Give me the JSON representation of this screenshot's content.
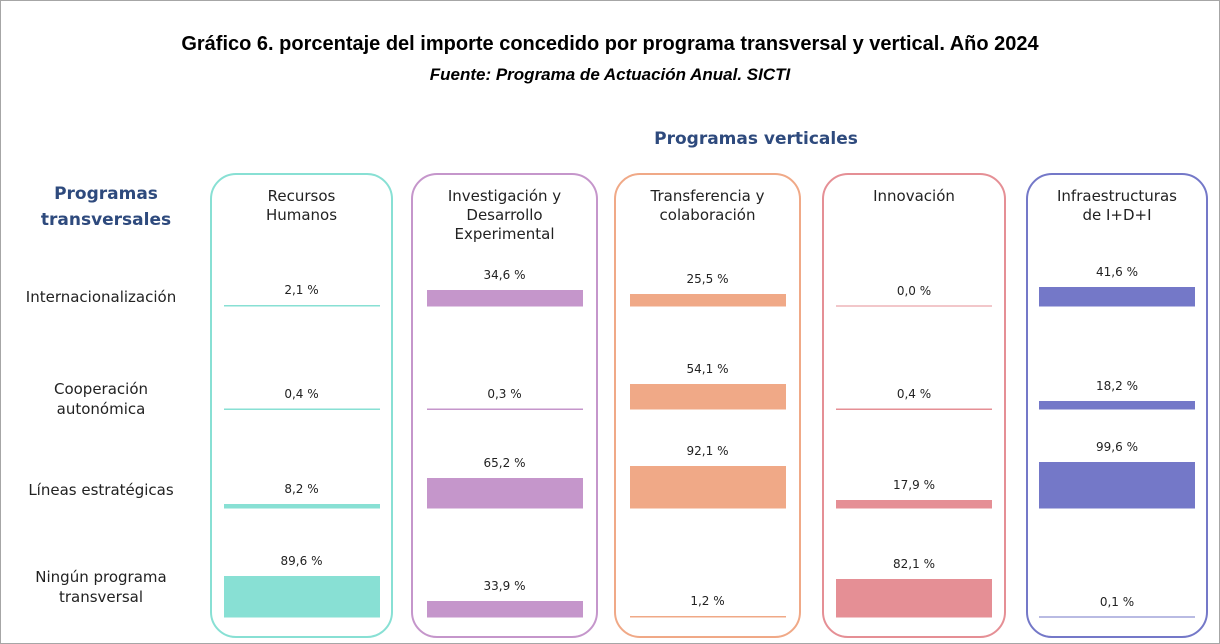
{
  "chart_data": {
    "type": "bar",
    "title": "Gráfico 6. porcentaje del importe concedido por programa transversal y vertical. Año 2024",
    "subtitle": "Fuente: Programa de Actuación Anual. SICTI",
    "column_axis_label": "Programas verticales",
    "row_axis_label": "Programas transversales",
    "categories": [
      "Internacionalización",
      "Cooperación autonómica",
      "Líneas estratégicas",
      "Ningún programa transversal"
    ],
    "series": [
      {
        "name": "Recursos Humanos",
        "color": "#88e0d4",
        "values": [
          2.1,
          0.4,
          8.2,
          89.6
        ],
        "value_labels": [
          "2,1 %",
          "0,4 %",
          "8,2 %",
          "89,6 %"
        ]
      },
      {
        "name": "Investigación y Desarrollo Experimental",
        "color": "#c596cb",
        "values": [
          34.6,
          0.3,
          65.2,
          33.9
        ],
        "value_labels": [
          "34,6 %",
          "0,3 %",
          "65,2 %",
          "33,9 %"
        ]
      },
      {
        "name": "Transferencia y colaboración",
        "color": "#f0a987",
        "values": [
          25.5,
          54.1,
          92.1,
          1.2
        ],
        "value_labels": [
          "25,5 %",
          "54,1 %",
          "92,1 %",
          "1,2 %"
        ]
      },
      {
        "name": "Innovación",
        "color": "#e58f95",
        "values": [
          0.0,
          0.4,
          17.9,
          82.1
        ],
        "value_labels": [
          "0,0 %",
          "0,4 %",
          "17,9 %",
          "82,1 %"
        ]
      },
      {
        "name": "Infraestructuras de I+D+I",
        "color": "#7478c8",
        "values": [
          41.6,
          18.2,
          99.6,
          0.1
        ],
        "value_labels": [
          "41,6 %",
          "18,2 %",
          "99,6 %",
          "0,1 %"
        ]
      }
    ]
  }
}
